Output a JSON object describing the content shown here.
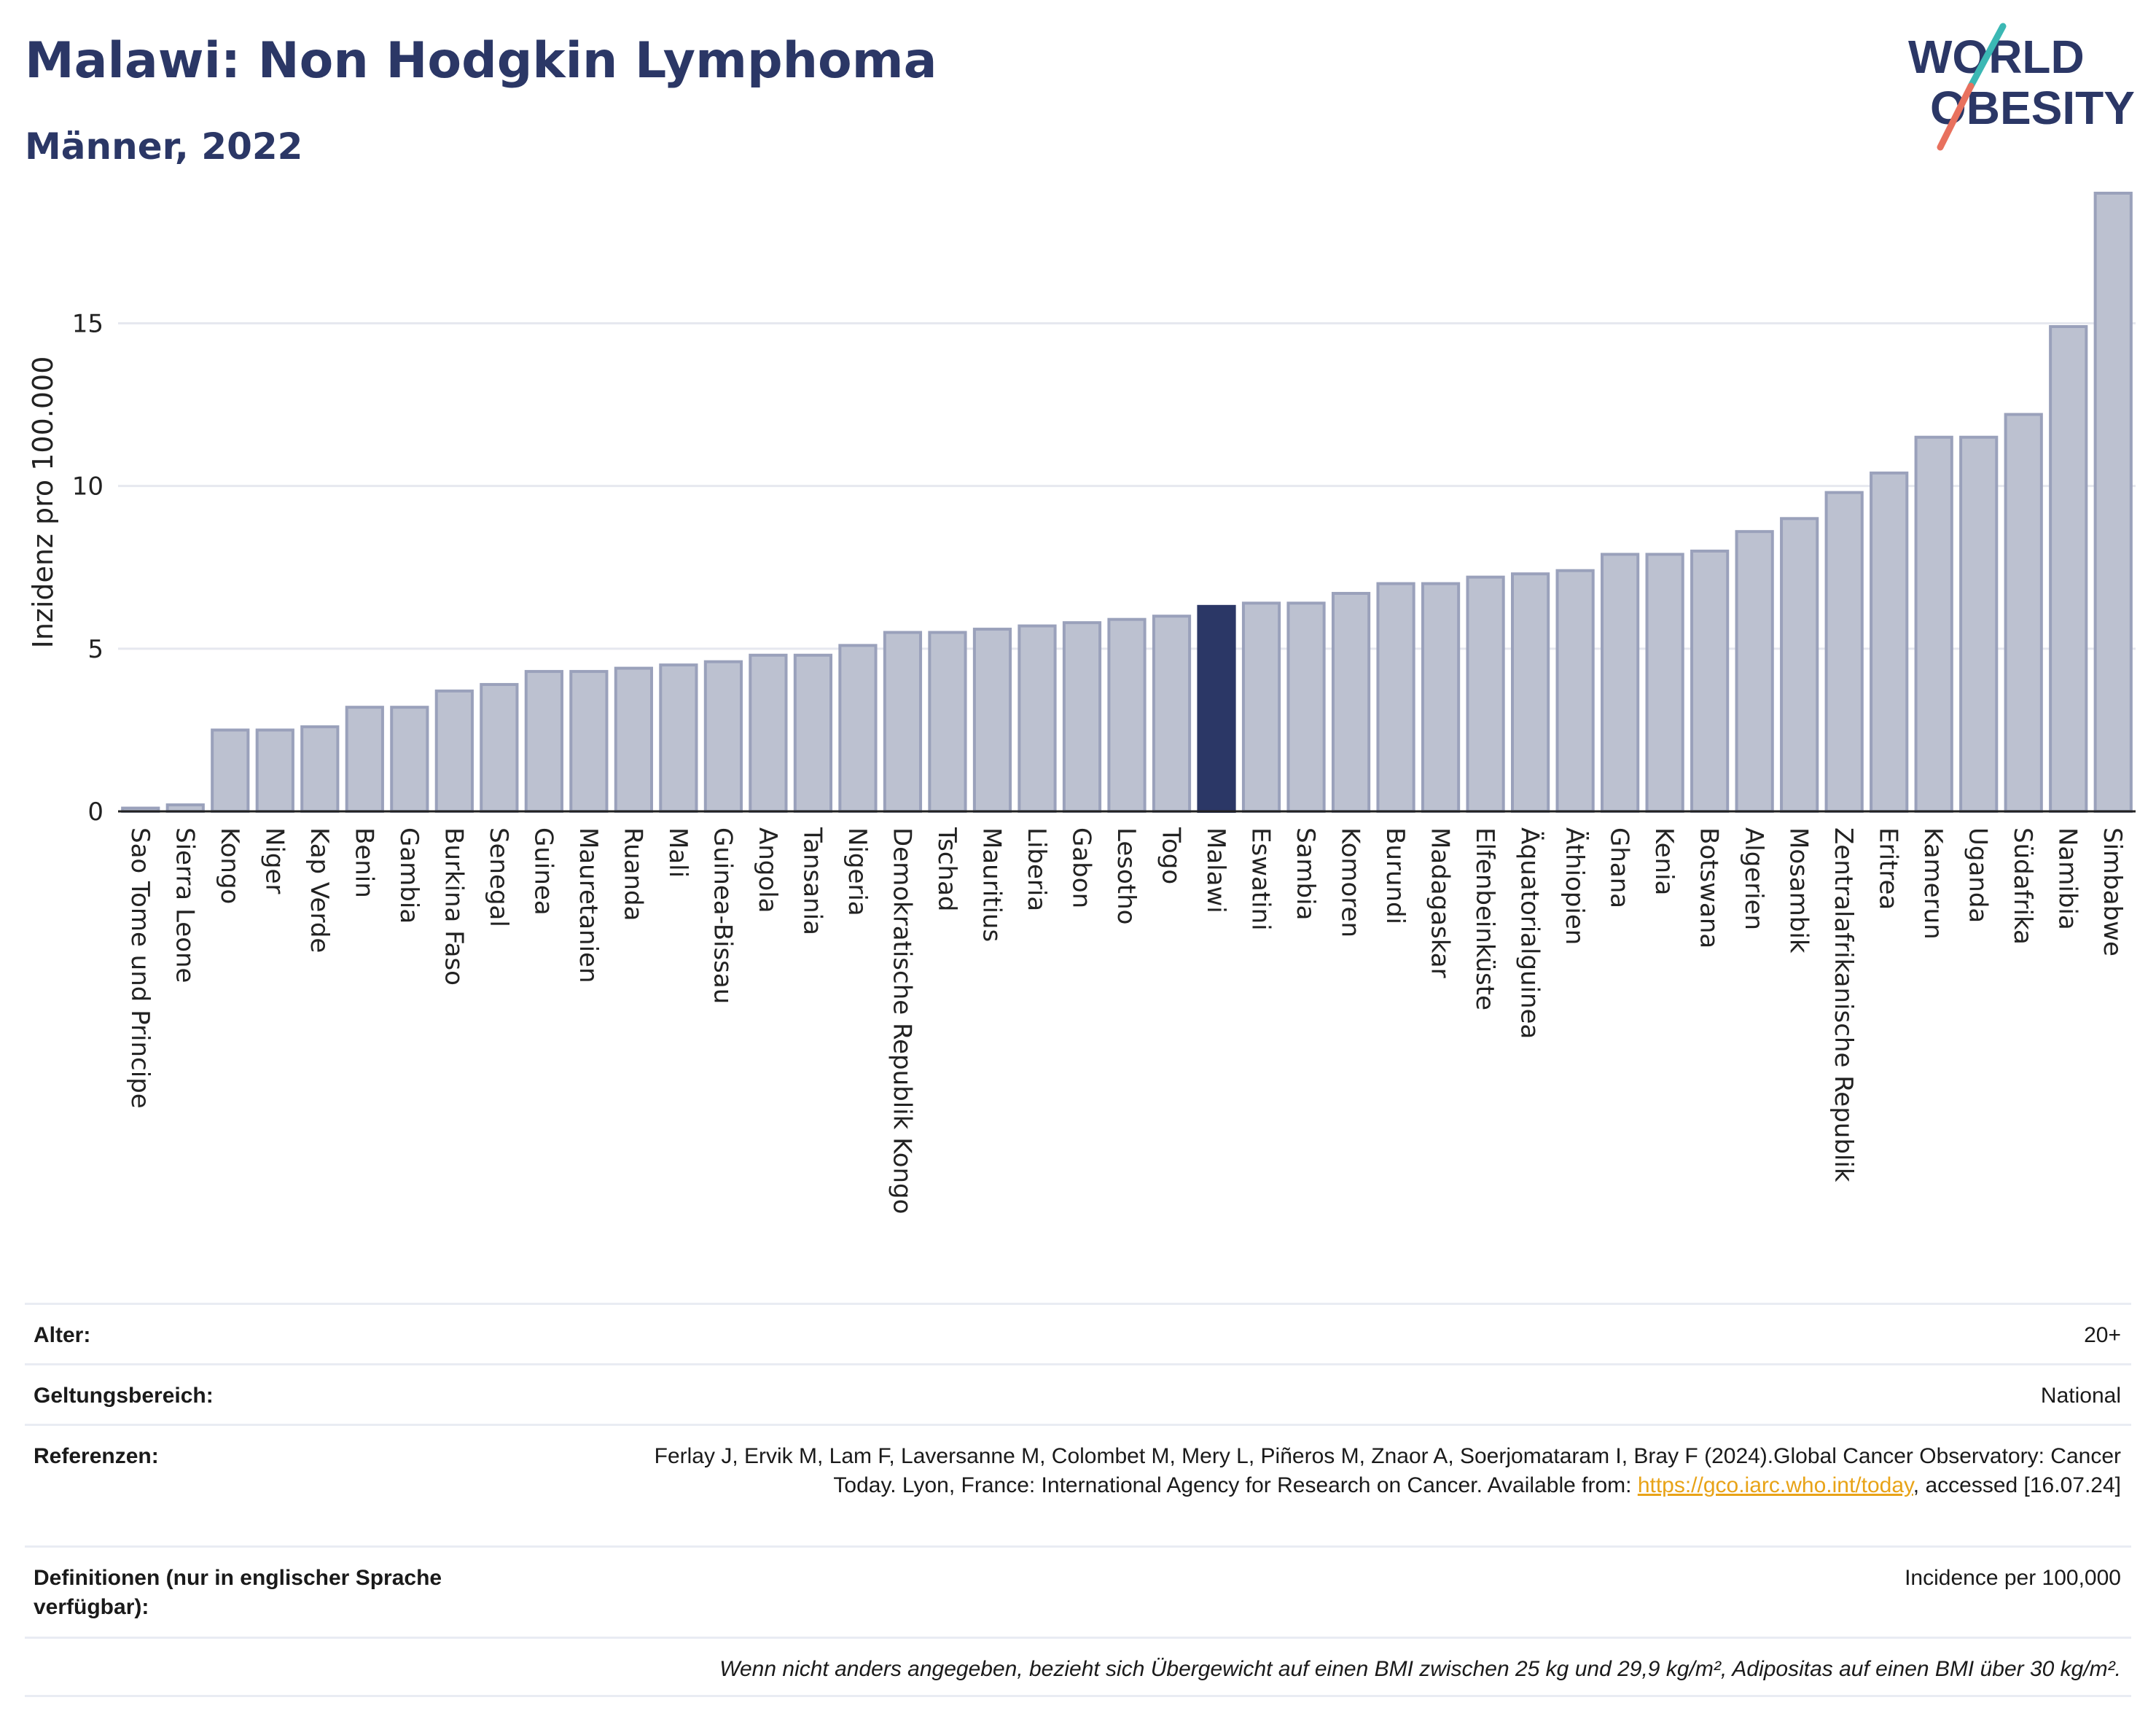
{
  "header": {
    "title": "Malawi: Non Hodgkin Lymphoma",
    "subtitle": "Männer, 2022"
  },
  "logo": {
    "line1": "WORLD",
    "line2": "OBESITY"
  },
  "colors": {
    "highlight": "#2b3766",
    "bar_fill": "#bcc1d0",
    "bar_stroke": "#9aa1bb",
    "title": "#2b3766",
    "grid": "#e6e8ef",
    "link": "#e8a317",
    "logo_teal": "#3bb8b4",
    "logo_coral": "#e8715e"
  },
  "chart_data": {
    "type": "bar",
    "title": "Malawi: Non Hodgkin Lymphoma",
    "subtitle": "Männer, 2022",
    "ylabel": "Inzidenz pro 100.000",
    "xlabel": "",
    "ylim": [
      0,
      19
    ],
    "yticks": [
      0,
      5,
      10,
      15
    ],
    "grid": true,
    "highlight": "Malawi",
    "categories": [
      "Sao Tome und Principe",
      "Sierra Leone",
      "Kongo",
      "Niger",
      "Kap Verde",
      "Benin",
      "Gambia",
      "Burkina Faso",
      "Senegal",
      "Guinea",
      "Mauretanien",
      "Ruanda",
      "Mali",
      "Guinea-Bissau",
      "Angola",
      "Tansania",
      "Nigeria",
      "Demokratische Republik Kongo",
      "Tschad",
      "Mauritius",
      "Liberia",
      "Gabon",
      "Lesotho",
      "Togo",
      "Malawi",
      "Eswatini",
      "Sambia",
      "Komoren",
      "Burundi",
      "Madagaskar",
      "Elfenbeinküste",
      "Äquatorialguinea",
      "Äthiopien",
      "Ghana",
      "Kenia",
      "Botswana",
      "Algerien",
      "Mosambik",
      "Zentralafrikanische Republik",
      "Eritrea",
      "Kamerun",
      "Uganda",
      "Südafrika",
      "Namibia",
      "Simbabwe"
    ],
    "values": [
      0.1,
      0.2,
      2.5,
      2.5,
      2.6,
      3.2,
      3.2,
      3.7,
      3.9,
      4.3,
      4.3,
      4.4,
      4.5,
      4.6,
      4.8,
      4.8,
      5.1,
      5.5,
      5.5,
      5.6,
      5.7,
      5.8,
      5.9,
      6.0,
      6.3,
      6.4,
      6.4,
      6.7,
      7.0,
      7.0,
      7.2,
      7.3,
      7.4,
      7.9,
      7.9,
      8.0,
      8.6,
      9.0,
      9.8,
      10.4,
      11.5,
      11.5,
      12.2,
      14.9,
      19.0
    ]
  },
  "meta": {
    "age_label": "Alter:",
    "age_value": "20+",
    "scope_label": "Geltungsbereich:",
    "scope_value": "National",
    "ref_label": "Referenzen:",
    "ref_text_1": "Ferlay J, Ervik M, Lam F, Laversanne M, Colombet M, Mery L, Piñeros M, Znaor A, Soerjomataram I, Bray F (2024).Global Cancer Observatory: Cancer Today. Lyon, France: International Agency for Research on Cancer. Available from: ",
    "ref_link": "https://gco.iarc.who.int/today",
    "ref_text_2": ", accessed [16.07.24]",
    "def_label": "Definitionen (nur in englischer Sprache verfügbar):",
    "def_value": "Incidence per 100,000",
    "note": "Wenn nicht anders angegeben, bezieht sich Übergewicht auf einen BMI zwischen 25 kg und 29,9 kg/m², Adipositas auf einen BMI über 30 kg/m²."
  }
}
